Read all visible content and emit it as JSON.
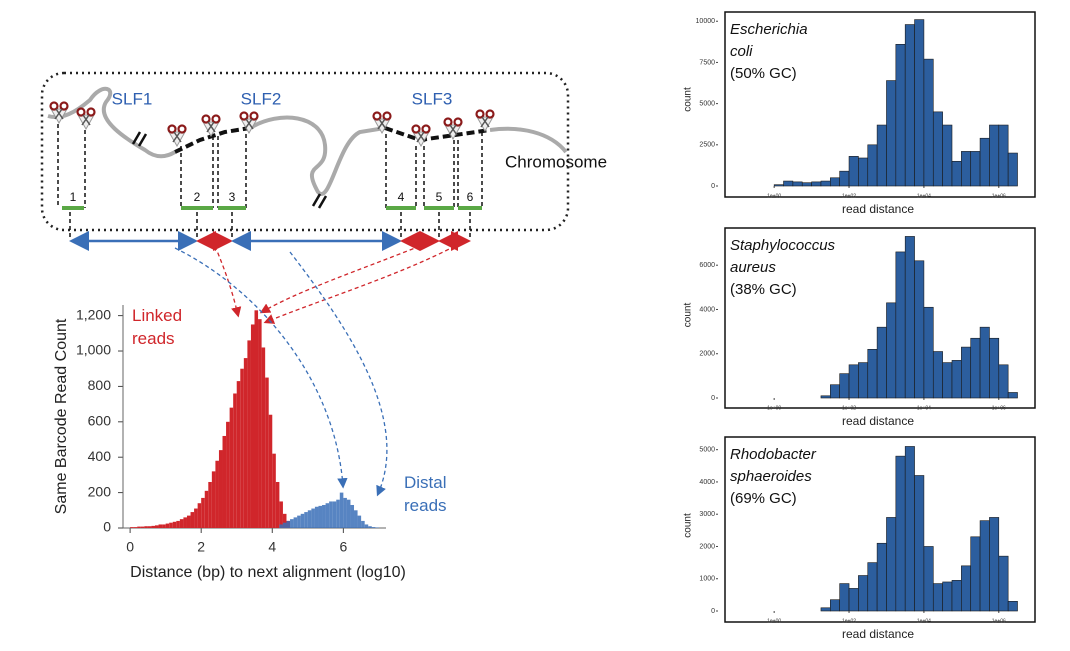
{
  "diagram": {
    "segments": [
      "SLF1",
      "SLF2",
      "SLF3"
    ],
    "chromosome": "Chromosome",
    "fragments": [
      "1",
      "2",
      "3",
      "4",
      "5",
      "6"
    ]
  },
  "chart_data": [
    {
      "type": "histogram",
      "y_label": "Same Barcode Read Count",
      "x_label": "Distance (bp) to next alignment (log10)",
      "xlim": [
        -0.2,
        7.2
      ],
      "xticks": [
        0,
        2,
        4,
        6
      ],
      "ylim": [
        0,
        1260
      ],
      "yticks": [
        0,
        200,
        400,
        600,
        800,
        {
          "value": 1000,
          "label": "1,000"
        },
        {
          "value": 1200,
          "label": "1,200"
        }
      ],
      "grid": false,
      "series": [
        {
          "name": "Linked reads",
          "color": "#d0262b",
          "bins": [
            0,
            0.1,
            0.2,
            0.3,
            0.4,
            0.5,
            0.6,
            0.7,
            0.8,
            0.9,
            1.0,
            1.1,
            1.2,
            1.3,
            1.4,
            1.5,
            1.6,
            1.7,
            1.8,
            1.9,
            2.0,
            2.1,
            2.2,
            2.3,
            2.4,
            2.5,
            2.6,
            2.7,
            2.8,
            2.9,
            3.0,
            3.1,
            3.2,
            3.3,
            3.4,
            3.5,
            3.6,
            3.7,
            3.8,
            3.9,
            4.0,
            4.1,
            4.2,
            4.3,
            4.4,
            4.5
          ],
          "values": [
            5,
            5,
            8,
            8,
            10,
            10,
            12,
            15,
            20,
            20,
            25,
            30,
            35,
            40,
            50,
            60,
            70,
            90,
            110,
            140,
            170,
            210,
            260,
            320,
            380,
            440,
            520,
            600,
            680,
            760,
            830,
            900,
            960,
            1060,
            1150,
            1230,
            1180,
            1020,
            850,
            640,
            420,
            260,
            150,
            80,
            40
          ]
        },
        {
          "name": "Distal reads",
          "color": "#3a6fb7",
          "bins": [
            4.2,
            4.3,
            4.4,
            4.5,
            4.6,
            4.7,
            4.8,
            4.9,
            5.0,
            5.1,
            5.2,
            5.3,
            5.4,
            5.5,
            5.6,
            5.7,
            5.8,
            5.9,
            6.0,
            6.1,
            6.2,
            6.3,
            6.4,
            6.5,
            6.6,
            6.7,
            6.8,
            6.9,
            7.0
          ],
          "values": [
            20,
            30,
            40,
            50,
            60,
            70,
            80,
            90,
            100,
            110,
            120,
            125,
            130,
            140,
            150,
            150,
            160,
            200,
            170,
            160,
            130,
            100,
            70,
            40,
            20,
            10,
            5,
            3
          ]
        }
      ]
    },
    {
      "type": "histogram",
      "title": "Escherichia coli",
      "subtitle": "(50% GC)",
      "x_label": "read distance",
      "y_label": "count",
      "color": "#2c5e9e",
      "grid": false,
      "xlim": [
        -1.5,
        6.7
      ],
      "xticks": [
        {
          "value": 0,
          "label": "1e+00"
        },
        {
          "value": 2,
          "label": "1e+02"
        },
        {
          "value": 4,
          "label": "1e+04"
        },
        {
          "value": 6,
          "label": "1e+06"
        }
      ],
      "ylim": [
        0,
        10500
      ],
      "yticks": [
        0,
        2500,
        5000,
        7500,
        10000
      ],
      "bins": [
        -1,
        -0.75,
        -0.5,
        -0.25,
        0,
        0.25,
        0.5,
        0.75,
        1,
        1.25,
        1.5,
        1.75,
        2,
        2.25,
        2.5,
        2.75,
        3,
        3.25,
        3.5,
        3.75,
        4,
        4.25,
        4.5,
        4.75,
        5,
        5.25,
        5.5,
        5.75,
        6,
        6.25,
        6.5
      ],
      "values": [
        0,
        0,
        0,
        0,
        80,
        300,
        250,
        200,
        250,
        300,
        500,
        900,
        1800,
        1700,
        2500,
        3700,
        6400,
        8600,
        9800,
        10100,
        7700,
        4500,
        3700,
        1500,
        2100,
        2100,
        2900,
        3700,
        3700,
        2000
      ]
    },
    {
      "type": "histogram",
      "title": "Staphylococcus aureus",
      "subtitle": "(38% GC)",
      "x_label": "read distance",
      "y_label": "count",
      "color": "#2c5e9e",
      "grid": false,
      "xlim": [
        -1.5,
        6.7
      ],
      "xticks": [
        {
          "value": 0,
          "label": "1e+00"
        },
        {
          "value": 2,
          "label": "1e+02"
        },
        {
          "value": 4,
          "label": "1e+04"
        },
        {
          "value": 6,
          "label": "1e+06"
        }
      ],
      "ylim": [
        0,
        7500
      ],
      "yticks": [
        0,
        2000,
        4000,
        6000
      ],
      "bins": [
        -1,
        -0.75,
        -0.5,
        -0.25,
        0,
        0.25,
        0.5,
        0.75,
        1,
        1.25,
        1.5,
        1.75,
        2,
        2.25,
        2.5,
        2.75,
        3,
        3.25,
        3.5,
        3.75,
        4,
        4.25,
        4.5,
        4.75,
        5,
        5.25,
        5.5,
        5.75,
        6,
        6.25,
        6.5
      ],
      "values": [
        0,
        0,
        0,
        0,
        0,
        0,
        0,
        0,
        0,
        100,
        600,
        1100,
        1500,
        1600,
        2200,
        3200,
        4300,
        6600,
        7300,
        6200,
        4100,
        2100,
        1600,
        1700,
        2300,
        2700,
        3200,
        2700,
        1500,
        250
      ]
    },
    {
      "type": "histogram",
      "title": "Rhodobacter sphaeroides",
      "subtitle": "(69% GC)",
      "x_label": "read distance",
      "y_label": "count",
      "color": "#2c5e9e",
      "grid": false,
      "xlim": [
        -1.5,
        6.7
      ],
      "xticks": [
        {
          "value": 0,
          "label": "1e+00"
        },
        {
          "value": 2,
          "label": "1e+02"
        },
        {
          "value": 4,
          "label": "1e+04"
        },
        {
          "value": 6,
          "label": "1e+06"
        }
      ],
      "ylim": [
        0,
        5300
      ],
      "yticks": [
        0,
        1000,
        2000,
        3000,
        4000,
        5000
      ],
      "bins": [
        -1,
        -0.75,
        -0.5,
        -0.25,
        0,
        0.25,
        0.5,
        0.75,
        1,
        1.25,
        1.5,
        1.75,
        2,
        2.25,
        2.5,
        2.75,
        3,
        3.25,
        3.5,
        3.75,
        4,
        4.25,
        4.5,
        4.75,
        5,
        5.25,
        5.5,
        5.75,
        6,
        6.25,
        6.5
      ],
      "values": [
        0,
        0,
        0,
        0,
        0,
        0,
        0,
        0,
        0,
        100,
        350,
        850,
        700,
        1100,
        1500,
        2100,
        2900,
        4800,
        5100,
        4200,
        2000,
        850,
        900,
        950,
        1400,
        2300,
        2800,
        2900,
        1700,
        300
      ]
    }
  ]
}
